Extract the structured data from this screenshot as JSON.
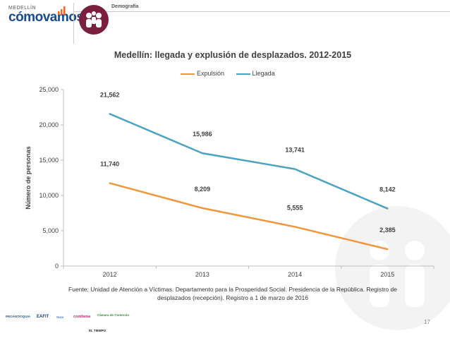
{
  "header": {
    "logo_small": "MEDELLÍN",
    "logo_word1": "cómo",
    "logo_word2": "vamos",
    "section_title": "Demografía"
  },
  "chart_data": {
    "type": "line",
    "title": "Medellín: llegada y explusión de desplazados. 2012-2015",
    "xlabel": "",
    "ylabel": "Número de personas",
    "categories": [
      "2012",
      "2013",
      "2014",
      "2015"
    ],
    "ylim": [
      0,
      25000
    ],
    "yticks": [
      0,
      5000,
      10000,
      15000,
      20000,
      25000
    ],
    "ytick_labels": [
      "0",
      "5,000",
      "10,000",
      "15,000",
      "20,000",
      "25,000"
    ],
    "grid": false,
    "legend_position": "top",
    "series": [
      {
        "name": "Expulsión",
        "color": "#f0963c",
        "values": [
          11740,
          8209,
          5555,
          2385
        ],
        "labels": [
          "11,740",
          "8,209",
          "5,555",
          "2,385"
        ]
      },
      {
        "name": "Llegada",
        "color": "#4aa3c0",
        "values": [
          21562,
          15986,
          13741,
          8142
        ],
        "labels": [
          "21,562",
          "15,986",
          "13,741",
          "8,142"
        ]
      }
    ]
  },
  "source_line1": "Fuente: Unidad de Atención a Víctimas. Departamento para la Prosperidad Social. Presidencia de la República. Registro de",
  "source_line2": "desplazados (recepción). Registro a 1 de marzo de 2016",
  "page_number": "17",
  "sponsors": [
    "PROANTIOQUIA",
    "EAFIT",
    "Sura",
    "comfama",
    "Cámara de Comercio",
    "EL TIEMPO"
  ]
}
